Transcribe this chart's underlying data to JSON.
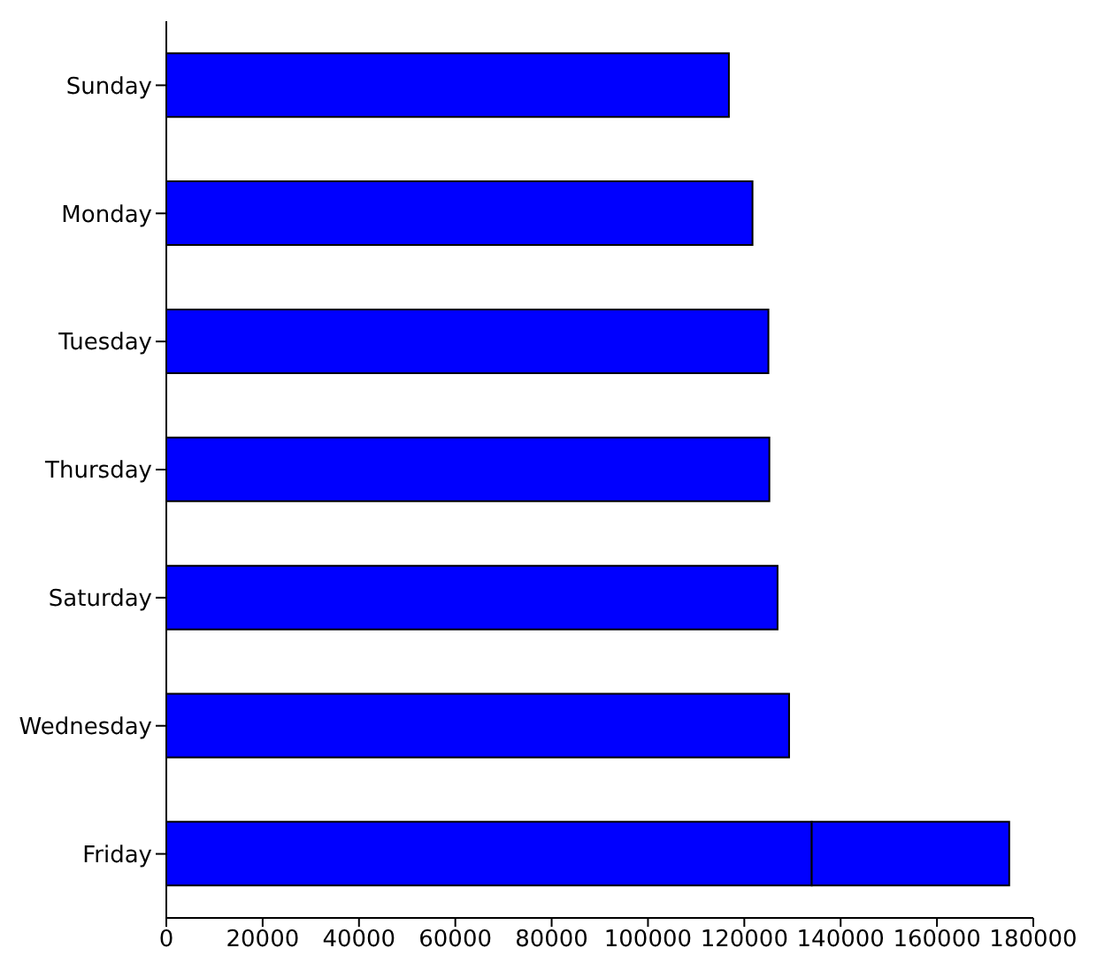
{
  "chart_data": {
    "type": "bar",
    "orientation": "horizontal",
    "stacked": true,
    "categories": [
      "Sunday",
      "Monday",
      "Tuesday",
      "Thursday",
      "Saturday",
      "Wednesday",
      "Friday"
    ],
    "series": [
      {
        "color": "#0000ff",
        "values": [
          116800,
          121700,
          125000,
          125200,
          126900,
          129300,
          134000
        ]
      },
      {
        "color": "#0000ff",
        "values": [
          null,
          null,
          null,
          null,
          null,
          null,
          41000
        ]
      }
    ],
    "xlim": [
      0,
      180000
    ],
    "xticks": [
      0,
      20000,
      40000,
      60000,
      80000,
      100000,
      120000,
      140000,
      160000,
      180000
    ],
    "grid": false,
    "legend": false
  }
}
